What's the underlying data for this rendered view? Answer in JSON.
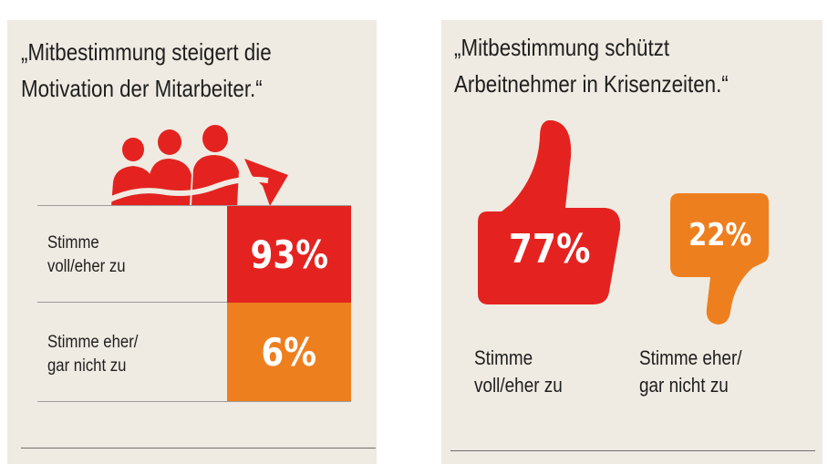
{
  "colors": {
    "red": "#e42320",
    "orange": "#ee7f1f",
    "panel": "#efebe2"
  },
  "icons": {
    "left": "people-growth-arrow-icon",
    "thumb_up": "thumbs-up-icon",
    "thumb_down": "thumbs-down-icon"
  },
  "chart_data": [
    {
      "type": "table",
      "title": "„Mitbestimmung steigert die Motivation der Mitarbeiter.“",
      "categories": [
        "Stimme voll/eher zu",
        "Stimme eher/ gar nicht zu"
      ],
      "values": [
        93,
        6
      ],
      "unit": "%",
      "labels": [
        "93%",
        "6%"
      ],
      "category_lines": [
        [
          "Stimme",
          "voll/eher zu"
        ],
        [
          "Stimme eher/",
          "gar nicht zu"
        ]
      ]
    },
    {
      "type": "bar",
      "title": "„Mitbestimmung schützt Arbeitnehmer in Krisenzeiten.“",
      "categories": [
        "Stimme voll/eher zu",
        "Stimme eher/ gar nicht zu"
      ],
      "values": [
        77,
        22
      ],
      "unit": "%",
      "labels": [
        "77%",
        "22%"
      ],
      "category_lines": [
        [
          "Stimme",
          "voll/eher zu"
        ],
        [
          "Stimme eher/",
          "gar nicht zu"
        ]
      ]
    }
  ],
  "panel1": {
    "title_lines": [
      "„Mitbestimmung steigert die",
      "Motivation der Mitarbeiter.“"
    ]
  },
  "panel2": {
    "title_lines": [
      "„Mitbestimmung schützt",
      "Arbeitnehmer in Krisenzeiten.“"
    ]
  }
}
